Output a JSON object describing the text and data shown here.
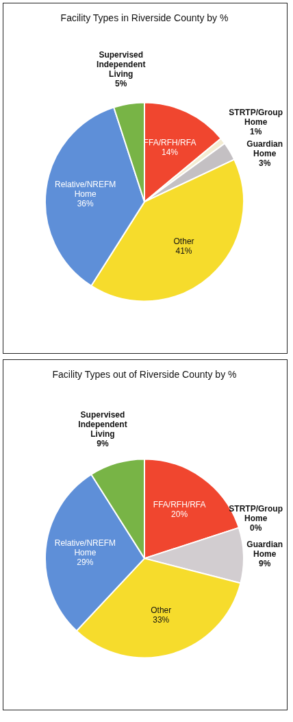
{
  "chart_data": [
    {
      "type": "pie",
      "title": "Facility Types in Riverside County by %",
      "categories": [
        "FFA/RFH/RFA",
        "STRTP/Group Home",
        "Guardian Home",
        "Other",
        "Relative/NREFM Home",
        "Supervised Independent Living"
      ],
      "values": [
        14,
        1,
        3,
        41,
        36,
        5
      ],
      "colors": [
        "#f0462f",
        "#f3ecd2",
        "#c4c0c3",
        "#f6dc2c",
        "#5e8fd8",
        "#78b446"
      ],
      "value_labels": [
        "14%",
        "1%",
        "3%",
        "41%",
        "36%",
        "5%"
      ]
    },
    {
      "type": "pie",
      "title": "Facility Types out of Riverside County by %",
      "categories": [
        "FFA/RFH/RFA",
        "STRTP/Group Home",
        "Guardian Home",
        "Other",
        "Relative/NREFM Home",
        "Supervised Independent Living"
      ],
      "values": [
        20,
        0,
        9,
        33,
        29,
        9
      ],
      "colors": [
        "#f0462f",
        "#f3ecd2",
        "#d2cdd0",
        "#f6dc2c",
        "#5e8fd8",
        "#78b446"
      ],
      "value_labels": [
        "20%",
        "0%",
        "9%",
        "33%",
        "29%",
        "9%"
      ]
    }
  ]
}
